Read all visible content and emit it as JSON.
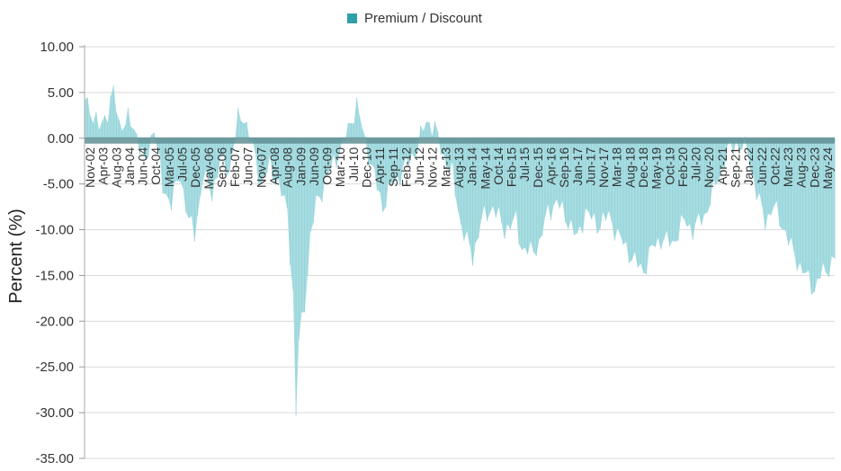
{
  "legend": {
    "label": "Premium / Discount",
    "color": "#2f9fa8"
  },
  "chart_data": {
    "type": "area",
    "title": "",
    "xlabel": "",
    "ylabel": "Percent (%)",
    "ylim": [
      -35,
      10
    ],
    "yticks": [
      10,
      5,
      0,
      -5,
      -10,
      -15,
      -20,
      -25,
      -30,
      -35
    ],
    "ytick_labels": [
      "10.00",
      "5.00",
      "0.00",
      "-5.00",
      "-10.00",
      "-15.00",
      "-20.00",
      "-25.00",
      "-30.00",
      "-35.00"
    ],
    "grid": true,
    "start_month": "2002-11",
    "end_month": "2024-06",
    "categories": [
      "Nov-02",
      "Apr-03",
      "Aug-03",
      "Jan-04",
      "Jun-04",
      "Oct-04",
      "Mar-05",
      "Jul-05",
      "Dec-05",
      "May-06",
      "Sep-06",
      "Feb-07",
      "Jun-07",
      "Nov-07",
      "Apr-08",
      "Aug-08",
      "Jan-09",
      "Jun-09",
      "Oct-09",
      "Mar-10",
      "Jul-10",
      "Dec-10",
      "Apr-11",
      "Sep-11",
      "Feb-12",
      "Jun-12",
      "Nov-12",
      "Mar-13",
      "Aug-13",
      "Jan-14",
      "May-14",
      "Oct-14",
      "Feb-15",
      "Jul-15",
      "Dec-15",
      "Apr-16",
      "Sep-16",
      "Jan-17",
      "Jun-17",
      "Nov-17",
      "Mar-18",
      "Aug-18",
      "Dec-18",
      "May-19",
      "Oct-19",
      "Feb-20",
      "Jul-20",
      "Nov-20",
      "Apr-21",
      "Sep-21",
      "Jan-22",
      "Jun-22",
      "Oct-22",
      "Mar-23",
      "Aug-23",
      "Dec-23",
      "May-24"
    ],
    "series": [
      {
        "name": "Premium / Discount",
        "color": "#2f9fa8",
        "fill_color": "#a8dde2",
        "points": [
          [
            "2002-11",
            4.5
          ],
          [
            "2003-02",
            2.5
          ],
          [
            "2003-04",
            1.0
          ],
          [
            "2003-07",
            3.0
          ],
          [
            "2003-09",
            5.0
          ],
          [
            "2003-11",
            1.5
          ],
          [
            "2004-02",
            2.0
          ],
          [
            "2004-05",
            0.5
          ],
          [
            "2004-08",
            -3.0
          ],
          [
            "2004-11",
            1.5
          ],
          [
            "2005-02",
            -5.5
          ],
          [
            "2005-05",
            -7.0
          ],
          [
            "2005-08",
            -4.0
          ],
          [
            "2005-11",
            -9.0
          ],
          [
            "2006-01",
            -10.5
          ],
          [
            "2006-04",
            -4.0
          ],
          [
            "2006-07",
            -6.0
          ],
          [
            "2006-10",
            -2.5
          ],
          [
            "2007-01",
            -3.5
          ],
          [
            "2007-04",
            2.0
          ],
          [
            "2007-06",
            2.5
          ],
          [
            "2007-09",
            -1.0
          ],
          [
            "2007-12",
            -5.0
          ],
          [
            "2008-03",
            -3.0
          ],
          [
            "2008-06",
            -5.0
          ],
          [
            "2008-09",
            -8.0
          ],
          [
            "2008-11",
            -17.0
          ],
          [
            "2008-12",
            -30.5
          ],
          [
            "2009-01",
            -22.0
          ],
          [
            "2009-03",
            -18.0
          ],
          [
            "2009-05",
            -11.0
          ],
          [
            "2009-07",
            -7.0
          ],
          [
            "2009-10",
            -5.0
          ],
          [
            "2010-01",
            -2.5
          ],
          [
            "2010-04",
            -1.0
          ],
          [
            "2010-07",
            2.0
          ],
          [
            "2010-09",
            3.5
          ],
          [
            "2010-11",
            1.0
          ],
          [
            "2011-02",
            -3.0
          ],
          [
            "2011-06",
            -7.5
          ],
          [
            "2011-09",
            -5.0
          ],
          [
            "2011-12",
            -4.0
          ],
          [
            "2012-03",
            -2.5
          ],
          [
            "2012-06",
            -1.0
          ],
          [
            "2012-09",
            2.0
          ],
          [
            "2012-12",
            1.0
          ],
          [
            "2013-03",
            -2.0
          ],
          [
            "2013-06",
            -4.0
          ],
          [
            "2013-09",
            -9.5
          ],
          [
            "2014-01",
            -13.0
          ],
          [
            "2014-04",
            -9.0
          ],
          [
            "2014-08",
            -7.5
          ],
          [
            "2014-12",
            -10.0
          ],
          [
            "2015-04",
            -9.0
          ],
          [
            "2015-06",
            -12.0
          ],
          [
            "2015-09",
            -12.5
          ],
          [
            "2015-12",
            -11.5
          ],
          [
            "2016-03",
            -8.0
          ],
          [
            "2016-06",
            -7.0
          ],
          [
            "2016-10",
            -9.0
          ],
          [
            "2017-01",
            -11.0
          ],
          [
            "2017-04",
            -8.0
          ],
          [
            "2017-08",
            -9.5
          ],
          [
            "2017-12",
            -8.5
          ],
          [
            "2018-03",
            -10.5
          ],
          [
            "2018-06",
            -12.0
          ],
          [
            "2018-09",
            -13.5
          ],
          [
            "2018-12",
            -14.5
          ],
          [
            "2019-03",
            -12.0
          ],
          [
            "2019-06",
            -11.0
          ],
          [
            "2019-10",
            -11.5
          ],
          [
            "2020-02",
            -9.0
          ],
          [
            "2020-05",
            -10.0
          ],
          [
            "2020-09",
            -8.5
          ],
          [
            "2021-01",
            -5.0
          ],
          [
            "2021-05",
            -1.5
          ],
          [
            "2021-08",
            -0.5
          ],
          [
            "2021-12",
            -1.5
          ],
          [
            "2022-03",
            -6.0
          ],
          [
            "2022-06",
            -9.0
          ],
          [
            "2022-09",
            -7.5
          ],
          [
            "2022-12",
            -9.5
          ],
          [
            "2023-03",
            -12.0
          ],
          [
            "2023-06",
            -14.0
          ],
          [
            "2023-09",
            -15.5
          ],
          [
            "2023-11",
            -16.5
          ],
          [
            "2024-01",
            -15.0
          ],
          [
            "2024-03",
            -14.5
          ],
          [
            "2024-06",
            -13.0
          ]
        ]
      }
    ],
    "fluctuation_amplitude": 1.4
  }
}
